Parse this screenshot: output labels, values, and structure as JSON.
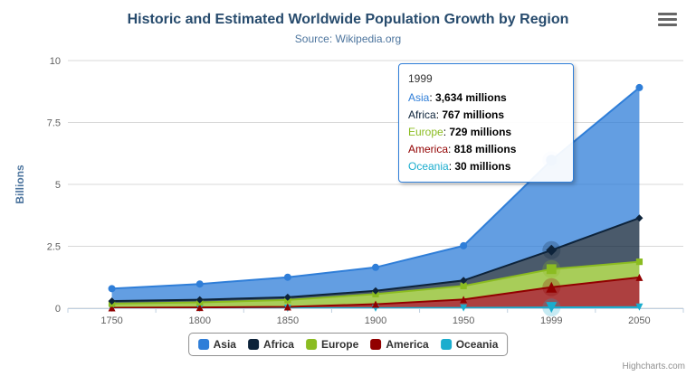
{
  "chart": {
    "title": "Historic and Estimated Worldwide Population Growth by Region",
    "subtitle": "Source: Wikipedia.org",
    "credits": "Highcharts.com"
  },
  "icons": {
    "export_menu": "hamburger-menu-icon"
  },
  "tooltip": {
    "header": "1999",
    "suffix": "millions",
    "rows": [
      {
        "name": "Asia",
        "value": "3,634"
      },
      {
        "name": "Africa",
        "value": "767"
      },
      {
        "name": "Europe",
        "value": "729"
      },
      {
        "name": "America",
        "value": "818"
      },
      {
        "name": "Oceania",
        "value": "30"
      }
    ]
  },
  "chart_data": {
    "type": "area",
    "stacking": "normal",
    "title": "Historic and Estimated Worldwide Population Growth by Region",
    "subtitle": "Source: Wikipedia.org",
    "categories": [
      "1750",
      "1800",
      "1850",
      "1900",
      "1950",
      "1999",
      "2050"
    ],
    "xlabel": "",
    "ylabel": "Billions",
    "ylim": [
      0,
      10
    ],
    "yticks": [
      0,
      2.5,
      5,
      7.5,
      10
    ],
    "unit": "millions (axis shown in billions)",
    "grid": "horizontal",
    "legend_position": "bottom",
    "hover_index": 5,
    "series": [
      {
        "name": "Asia",
        "color": "#2f7ed8",
        "marker": "circle",
        "values": [
          502,
          635,
          809,
          947,
          1402,
          3634,
          5268
        ]
      },
      {
        "name": "Africa",
        "color": "#0d233a",
        "marker": "diamond",
        "values": [
          106,
          107,
          111,
          133,
          221,
          767,
          1766
        ]
      },
      {
        "name": "Europe",
        "color": "#8bbc21",
        "marker": "square",
        "values": [
          163,
          203,
          276,
          408,
          547,
          729,
          628
        ]
      },
      {
        "name": "America",
        "color": "#910000",
        "marker": "triangle",
        "values": [
          18,
          31,
          54,
          156,
          339,
          818,
          1201
        ]
      },
      {
        "name": "Oceania",
        "color": "#1aadce",
        "marker": "triangle-down",
        "values": [
          2,
          2,
          2,
          6,
          13,
          30,
          46
        ]
      }
    ]
  }
}
